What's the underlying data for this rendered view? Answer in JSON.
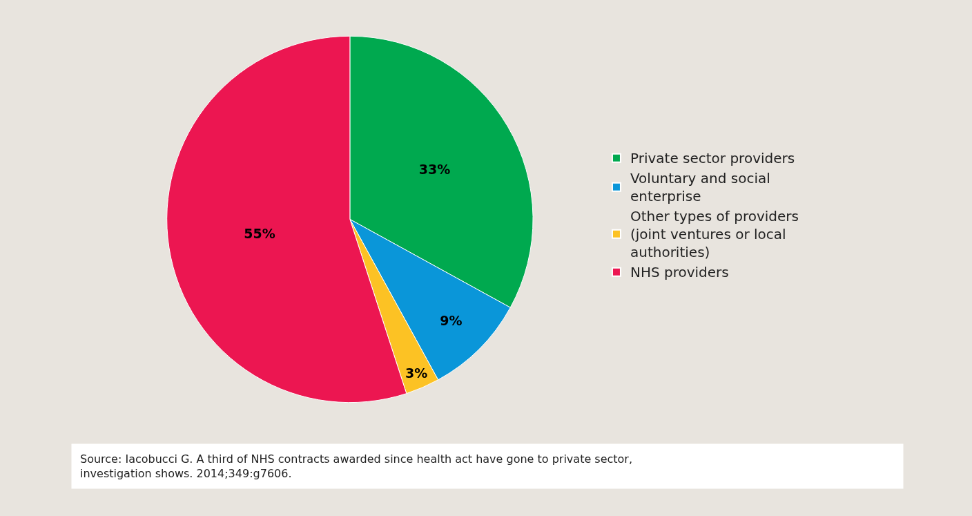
{
  "chart_data": {
    "type": "pie",
    "categories": [
      "Private sector providers",
      "Voluntary and social enterprise",
      "Other types of providers (joint ventures or local authorities)",
      "NHS providers"
    ],
    "values": [
      33,
      9,
      3,
      55
    ],
    "value_labels": [
      "33%",
      "9%",
      "3%",
      "55%"
    ],
    "colors": [
      "#00a94f",
      "#0a96d9",
      "#fcc224",
      "#ec1651"
    ],
    "legend": "right",
    "annotations": [
      "Source: Iacobucci G. A third of NHS contracts awarded since health act have gone to private sector, investigation shows. 2014;349:g7606."
    ]
  }
}
